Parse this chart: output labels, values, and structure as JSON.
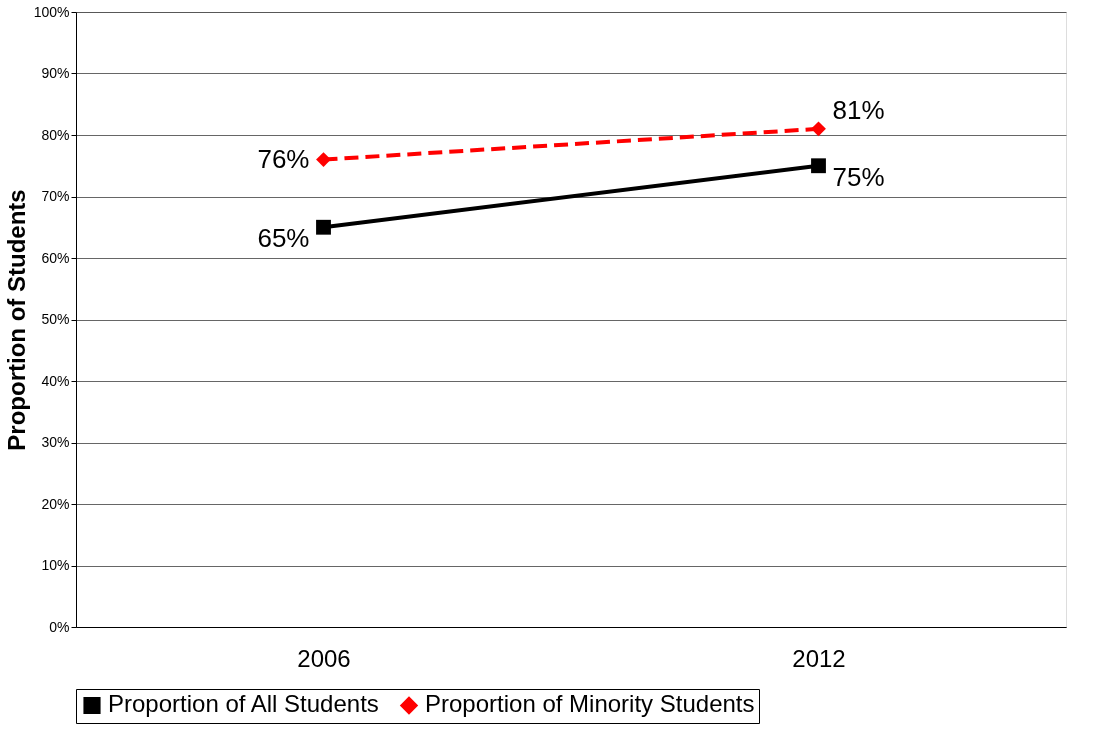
{
  "chart_data": {
    "type": "line",
    "ylabel": "Proportion of Students",
    "categories": [
      "2006",
      "2012"
    ],
    "series": [
      {
        "name": "Proportion of All Students",
        "color": "#000000",
        "values": [
          65,
          75
        ],
        "value_labels": [
          "65%",
          "75%"
        ],
        "marker": "square",
        "line_style": "solid"
      },
      {
        "name": "Proportion of Minority Students",
        "color": "#ff0000",
        "values": [
          76,
          81
        ],
        "value_labels": [
          "76%",
          "81%"
        ],
        "marker": "diamond",
        "line_style": "dashed"
      }
    ],
    "ylim": [
      0,
      100
    ],
    "yticks": [
      {
        "value": 0,
        "label": "0%"
      },
      {
        "value": 10,
        "label": "10%"
      },
      {
        "value": 20,
        "label": "20%"
      },
      {
        "value": 30,
        "label": "30%"
      },
      {
        "value": 40,
        "label": "40%"
      },
      {
        "value": 50,
        "label": "50%"
      },
      {
        "value": 60,
        "label": "60%"
      },
      {
        "value": 70,
        "label": "70%"
      },
      {
        "value": 80,
        "label": "80%"
      },
      {
        "value": 90,
        "label": "90%"
      },
      {
        "value": 100,
        "label": "100%"
      }
    ],
    "grid": "y",
    "legend": "bottom"
  }
}
